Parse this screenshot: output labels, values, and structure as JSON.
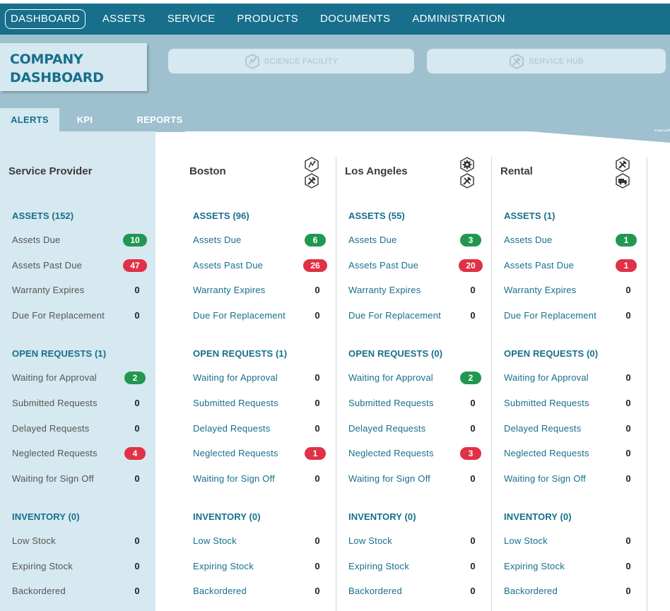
{
  "nav": {
    "items": [
      "DASHBOARD",
      "ASSETS",
      "SERVICE",
      "PRODUCTS",
      "DOCUMENTS",
      "ADMINISTRATION"
    ],
    "active": "DASHBOARD"
  },
  "header": {
    "title_line1": "COMPANY",
    "title_line2": "DASHBOARD",
    "facilities": [
      {
        "label": "SCIENCE FACILITY",
        "icon": "flask-icon"
      },
      {
        "label": "SERVICE HUB",
        "icon": "hammer-wrench-icon"
      }
    ]
  },
  "tabs": {
    "alerts": "ALERTS",
    "kpi": "KPI",
    "reports": "REPORTS",
    "reset": "reset"
  },
  "colors": {
    "brand": "#176f8b",
    "panel": "#d6e8f0",
    "banner": "#9ec0cf",
    "badge_green": "#219752",
    "badge_red": "#e03146"
  },
  "columns": [
    {
      "name": "Service Provider",
      "icons": [],
      "label_style": "gray",
      "assets_header": "ASSETS (152)",
      "assets": [
        {
          "label": "Assets Due",
          "value": "10",
          "kind": "green"
        },
        {
          "label": "Assets Past Due",
          "value": "47",
          "kind": "red"
        },
        {
          "label": "Warranty Expires",
          "value": "0",
          "kind": "plain"
        },
        {
          "label": "Due For Replacement",
          "value": "0",
          "kind": "plain"
        }
      ],
      "requests_header": "OPEN REQUESTS (1)",
      "requests": [
        {
          "label": "Waiting for Approval",
          "value": "2",
          "kind": "green"
        },
        {
          "label": "Submitted Requests",
          "value": "0",
          "kind": "plain"
        },
        {
          "label": "Delayed Requests",
          "value": "0",
          "kind": "plain"
        },
        {
          "label": "Neglected Requests",
          "value": "4",
          "kind": "red"
        },
        {
          "label": "Waiting for Sign Off",
          "value": "0",
          "kind": "plain"
        }
      ],
      "inventory_header": "INVENTORY (0)",
      "inventory": [
        {
          "label": "Low Stock",
          "value": "0",
          "kind": "plain"
        },
        {
          "label": "Expiring Stock",
          "value": "0",
          "kind": "plain"
        },
        {
          "label": "Backordered",
          "value": "0",
          "kind": "plain"
        }
      ]
    },
    {
      "name": "Boston",
      "icons": [
        "flask-icon",
        "hammer-wrench-icon"
      ],
      "label_style": "blue",
      "assets_header": "ASSETS (96)",
      "assets": [
        {
          "label": "Assets Due",
          "value": "6",
          "kind": "green"
        },
        {
          "label": "Assets Past Due",
          "value": "26",
          "kind": "red"
        },
        {
          "label": "Warranty Expires",
          "value": "0",
          "kind": "plain"
        },
        {
          "label": "Due For Replacement",
          "value": "0",
          "kind": "plain"
        }
      ],
      "requests_header": "OPEN REQUESTS (1)",
      "requests": [
        {
          "label": "Waiting for Approval",
          "value": "0",
          "kind": "plain"
        },
        {
          "label": "Submitted Requests",
          "value": "0",
          "kind": "plain"
        },
        {
          "label": "Delayed Requests",
          "value": "0",
          "kind": "plain"
        },
        {
          "label": "Neglected Requests",
          "value": "1",
          "kind": "red"
        },
        {
          "label": "Waiting for Sign Off",
          "value": "0",
          "kind": "plain"
        }
      ],
      "inventory_header": "INVENTORY (0)",
      "inventory": [
        {
          "label": "Low Stock",
          "value": "0",
          "kind": "plain"
        },
        {
          "label": "Expiring Stock",
          "value": "0",
          "kind": "plain"
        },
        {
          "label": "Backordered",
          "value": "0",
          "kind": "plain"
        }
      ]
    },
    {
      "name": "Los Angeles",
      "icons": [
        "gear-icon",
        "hammer-wrench-icon"
      ],
      "label_style": "blue",
      "assets_header": "ASSETS (55)",
      "assets": [
        {
          "label": "Assets Due",
          "value": "3",
          "kind": "green"
        },
        {
          "label": "Assets Past Due",
          "value": "20",
          "kind": "red"
        },
        {
          "label": "Warranty Expires",
          "value": "0",
          "kind": "plain"
        },
        {
          "label": "Due For Replacement",
          "value": "0",
          "kind": "plain"
        }
      ],
      "requests_header": "OPEN REQUESTS (0)",
      "requests": [
        {
          "label": "Waiting for Approval",
          "value": "2",
          "kind": "green"
        },
        {
          "label": "Submitted Requests",
          "value": "0",
          "kind": "plain"
        },
        {
          "label": "Delayed Requests",
          "value": "0",
          "kind": "plain"
        },
        {
          "label": "Neglected Requests",
          "value": "3",
          "kind": "red"
        },
        {
          "label": "Waiting for Sign Off",
          "value": "0",
          "kind": "plain"
        }
      ],
      "inventory_header": "INVENTORY (0)",
      "inventory": [
        {
          "label": "Low Stock",
          "value": "0",
          "kind": "plain"
        },
        {
          "label": "Expiring Stock",
          "value": "0",
          "kind": "plain"
        },
        {
          "label": "Backordered",
          "value": "0",
          "kind": "plain"
        }
      ]
    },
    {
      "name": "Rental",
      "icons": [
        "hammer-wrench-icon",
        "truck-icon"
      ],
      "label_style": "blue",
      "assets_header": "ASSETS (1)",
      "assets": [
        {
          "label": "Assets Due",
          "value": "1",
          "kind": "green"
        },
        {
          "label": "Assets Past Due",
          "value": "1",
          "kind": "red"
        },
        {
          "label": "Warranty Expires",
          "value": "0",
          "kind": "plain"
        },
        {
          "label": "Due For Replacement",
          "value": "0",
          "kind": "plain"
        }
      ],
      "requests_header": "OPEN REQUESTS (0)",
      "requests": [
        {
          "label": "Waiting for Approval",
          "value": "0",
          "kind": "plain"
        },
        {
          "label": "Submitted Requests",
          "value": "0",
          "kind": "plain"
        },
        {
          "label": "Delayed Requests",
          "value": "0",
          "kind": "plain"
        },
        {
          "label": "Neglected Requests",
          "value": "0",
          "kind": "plain"
        },
        {
          "label": "Waiting for Sign Off",
          "value": "0",
          "kind": "plain"
        }
      ],
      "inventory_header": "INVENTORY (0)",
      "inventory": [
        {
          "label": "Low Stock",
          "value": "0",
          "kind": "plain"
        },
        {
          "label": "Expiring Stock",
          "value": "0",
          "kind": "plain"
        },
        {
          "label": "Backordered",
          "value": "0",
          "kind": "plain"
        }
      ]
    }
  ]
}
